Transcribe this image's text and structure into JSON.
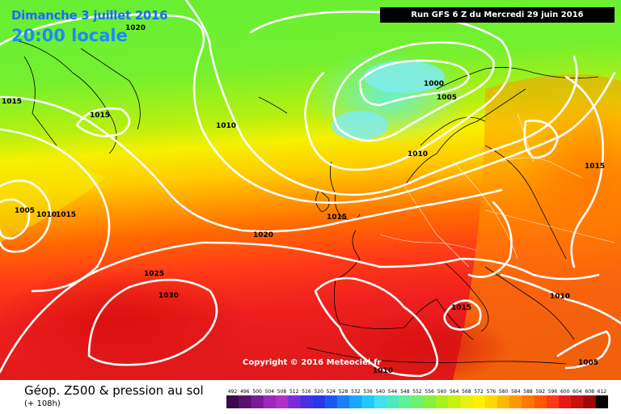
{
  "header": {
    "date": "Dimanche 3 juillet 2016",
    "time": "20:00 locale",
    "run": "Run GFS 6 Z du Mercredi 29 juin 2016"
  },
  "copyright": "Copyright © 2016 Meteociel.fr",
  "product": {
    "title": "Géop. Z500 & pression au sol",
    "lead_time": "(+ 108h)"
  },
  "isobar_labels": [
    "1020",
    "1015",
    "1015",
    "1010",
    "1000",
    "1005",
    "1010",
    "1005",
    "1010",
    "1015",
    "1015",
    "1020",
    "1025",
    "1030",
    "1015",
    "1010",
    "1010",
    "1005",
    "1015"
  ],
  "color_scale": {
    "ticks": [
      "492",
      "496",
      "500",
      "504",
      "508",
      "512",
      "516",
      "520",
      "524",
      "528",
      "532",
      "536",
      "540",
      "544",
      "548",
      "552",
      "556",
      "560",
      "564",
      "568",
      "572",
      "576",
      "580",
      "584",
      "588",
      "592",
      "596",
      "600",
      "604",
      "608",
      "612"
    ],
    "colors": [
      "#3a0a4a",
      "#5a1070",
      "#7a1a96",
      "#9a28b8",
      "#b030c8",
      "#7a2cd8",
      "#4830e0",
      "#2838e8",
      "#1a58f0",
      "#1a80f8",
      "#18a8ff",
      "#20c8ff",
      "#40e0f0",
      "#50e8c0",
      "#60f098",
      "#70f070",
      "#88f040",
      "#a8f020",
      "#c8f010",
      "#e8f010",
      "#fff000",
      "#ffd800",
      "#ffb800",
      "#ff9800",
      "#ff7800",
      "#ff5800",
      "#ff3818",
      "#e81818",
      "#c81010",
      "#a00808",
      "#000000"
    ]
  }
}
